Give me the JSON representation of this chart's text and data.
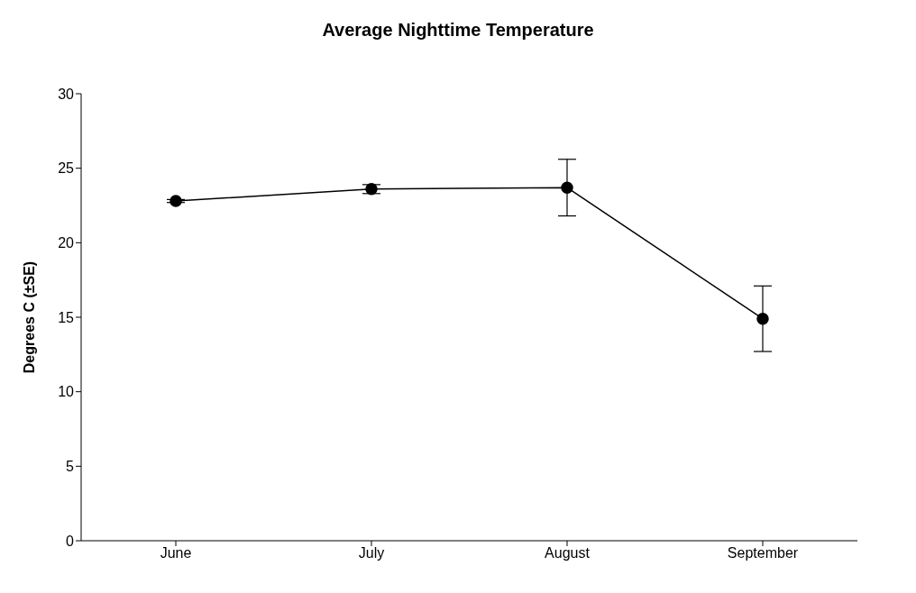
{
  "chart_data": {
    "type": "line",
    "title": "Average Nighttime Temperature",
    "ylabel": "Degrees C (±SE)",
    "categories": [
      "June",
      "July",
      "August",
      "September"
    ],
    "series": [
      {
        "color": "#000000",
        "values": [
          22.8,
          23.6,
          23.7,
          14.9
        ],
        "errors": [
          0.1,
          0.3,
          1.9,
          2.2
        ]
      }
    ],
    "ylim": [
      0,
      30
    ],
    "yticks": [
      0,
      5,
      10,
      15,
      20,
      25,
      30
    ],
    "grid": false,
    "marker": "circle",
    "line_style": "solid"
  }
}
